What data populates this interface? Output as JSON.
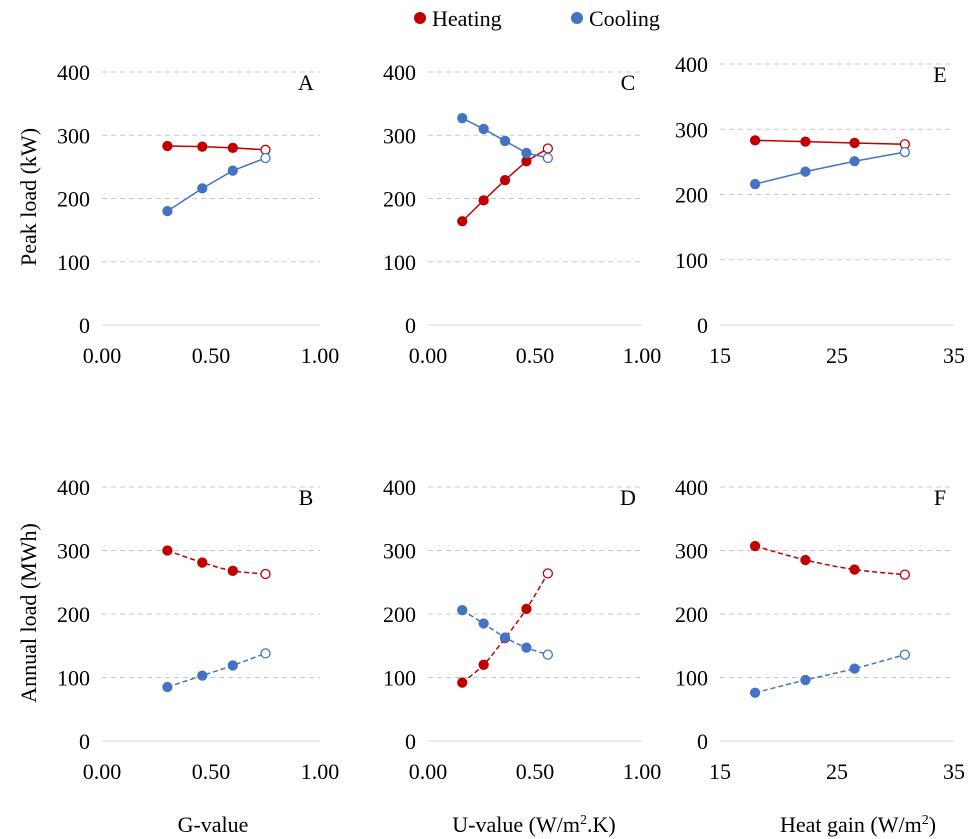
{
  "legend": {
    "items": [
      {
        "label": "Heating",
        "color": "#c00000"
      },
      {
        "label": "Cooling",
        "color": "#4472c4"
      }
    ]
  },
  "y_axis_titles": {
    "top_row": "Peak load (kW)",
    "bottom_row": "Annual load (MWh)"
  },
  "x_axis_titles": {
    "col1": "G-value",
    "col2": {
      "base": "U-value (W/m",
      "sup": "2",
      "tail": ".K)"
    },
    "col3": {
      "base": "Heat gain (W/m",
      "sup": "2",
      "tail": ")"
    }
  },
  "chart_data": [
    {
      "panel": "A",
      "type": "line",
      "line_style": "solid",
      "xlim": [
        0,
        1
      ],
      "ylim": [
        0,
        400
      ],
      "xticks": [
        0,
        0.5,
        1
      ],
      "xtick_labels": [
        "0.00",
        "0.50",
        "1.00"
      ],
      "yticks": [
        0,
        100,
        200,
        300,
        400
      ],
      "ytick_labels": [
        "0",
        "100",
        "200",
        "300",
        "400"
      ],
      "grid": "horizontal dashed",
      "series": [
        {
          "name": "Heating",
          "color": "#c00000",
          "x": [
            0.3,
            0.46,
            0.6,
            0.75
          ],
          "y": [
            283,
            282,
            280,
            277
          ]
        },
        {
          "name": "Cooling",
          "color": "#4472c4",
          "x": [
            0.3,
            0.46,
            0.6,
            0.75
          ],
          "y": [
            180,
            216,
            244,
            264
          ]
        }
      ],
      "note": "last point of each series drawn as an open marker"
    },
    {
      "panel": "B",
      "type": "line",
      "line_style": "dashed",
      "xlim": [
        0,
        1
      ],
      "ylim": [
        0,
        400
      ],
      "xticks": [
        0,
        0.5,
        1
      ],
      "xtick_labels": [
        "0.00",
        "0.50",
        "1.00"
      ],
      "yticks": [
        0,
        100,
        200,
        300,
        400
      ],
      "ytick_labels": [
        "0",
        "100",
        "200",
        "300",
        "400"
      ],
      "grid": "horizontal dashed",
      "series": [
        {
          "name": "Heating",
          "color": "#c00000",
          "x": [
            0.3,
            0.46,
            0.6,
            0.75
          ],
          "y": [
            300,
            281,
            268,
            263
          ]
        },
        {
          "name": "Cooling",
          "color": "#4472c4",
          "x": [
            0.3,
            0.46,
            0.6,
            0.75
          ],
          "y": [
            85,
            103,
            119,
            138
          ]
        }
      ]
    },
    {
      "panel": "C",
      "type": "line",
      "line_style": "solid",
      "xlim": [
        0,
        1
      ],
      "ylim": [
        0,
        400
      ],
      "xticks": [
        0,
        0.5,
        1
      ],
      "xtick_labels": [
        "0.00",
        "0.50",
        "1.00"
      ],
      "yticks": [
        0,
        100,
        200,
        300,
        400
      ],
      "ytick_labels": [
        "0",
        "100",
        "200",
        "300",
        "400"
      ],
      "grid": "horizontal dashed",
      "series": [
        {
          "name": "Heating",
          "color": "#c00000",
          "x": [
            0.16,
            0.26,
            0.36,
            0.46,
            0.56
          ],
          "y": [
            164,
            197,
            229,
            259,
            279
          ]
        },
        {
          "name": "Cooling",
          "color": "#4472c4",
          "x": [
            0.16,
            0.26,
            0.36,
            0.46,
            0.56
          ],
          "y": [
            327,
            310,
            291,
            272,
            264
          ]
        }
      ]
    },
    {
      "panel": "D",
      "type": "line",
      "line_style": "dashed",
      "xlim": [
        0,
        1
      ],
      "ylim": [
        0,
        400
      ],
      "xticks": [
        0,
        0.5,
        1
      ],
      "xtick_labels": [
        "0.00",
        "0.50",
        "1.00"
      ],
      "yticks": [
        0,
        100,
        200,
        300,
        400
      ],
      "ytick_labels": [
        "0",
        "100",
        "200",
        "300",
        "400"
      ],
      "grid": "horizontal dashed",
      "series": [
        {
          "name": "Heating",
          "color": "#c00000",
          "x": [
            0.16,
            0.26,
            0.36,
            0.46,
            0.56
          ],
          "y": [
            92,
            120,
            162,
            208,
            264
          ]
        },
        {
          "name": "Cooling",
          "color": "#4472c4",
          "x": [
            0.16,
            0.26,
            0.36,
            0.46,
            0.56
          ],
          "y": [
            206,
            185,
            163,
            147,
            136
          ]
        }
      ]
    },
    {
      "panel": "E",
      "type": "line",
      "line_style": "solid",
      "xlim": [
        15,
        35
      ],
      "ylim": [
        0,
        400
      ],
      "xticks": [
        15,
        25,
        35
      ],
      "xtick_labels": [
        "15",
        "25",
        "35"
      ],
      "yticks": [
        0,
        100,
        200,
        300,
        400
      ],
      "ytick_labels": [
        "0",
        "100",
        "200",
        "300",
        "400"
      ],
      "grid": "horizontal dashed",
      "series": [
        {
          "name": "Heating",
          "color": "#c00000",
          "x": [
            18,
            22.3,
            26.5,
            30.8
          ],
          "y": [
            283,
            281,
            279,
            277
          ]
        },
        {
          "name": "Cooling",
          "color": "#4472c4",
          "x": [
            18,
            22.3,
            26.5,
            30.8
          ],
          "y": [
            216,
            235,
            251,
            265
          ]
        }
      ]
    },
    {
      "panel": "F",
      "type": "line",
      "line_style": "dashed",
      "xlim": [
        15,
        35
      ],
      "ylim": [
        0,
        400
      ],
      "xticks": [
        15,
        25,
        35
      ],
      "xtick_labels": [
        "15",
        "25",
        "35"
      ],
      "yticks": [
        0,
        100,
        200,
        300,
        400
      ],
      "ytick_labels": [
        "0",
        "100",
        "200",
        "300",
        "400"
      ],
      "grid": "horizontal dashed",
      "series": [
        {
          "name": "Heating",
          "color": "#c00000",
          "x": [
            18,
            22.3,
            26.5,
            30.8
          ],
          "y": [
            307,
            285,
            270,
            262
          ]
        },
        {
          "name": "Cooling",
          "color": "#4472c4",
          "x": [
            18,
            22.3,
            26.5,
            30.8
          ],
          "y": [
            76,
            96,
            114,
            136
          ]
        }
      ]
    }
  ]
}
